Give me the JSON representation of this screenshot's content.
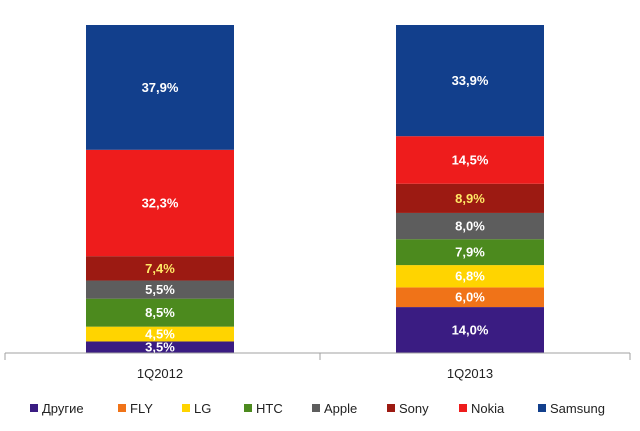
{
  "chart_data": {
    "type": "bar",
    "stacked": true,
    "normalized": true,
    "categories": [
      "1Q2012",
      "1Q2013"
    ],
    "series": [
      {
        "name": "Другие",
        "color": "#3a1c82",
        "label_color": "#ffffff",
        "values": [
          3.5,
          14.0
        ],
        "labels": [
          "3,5%",
          "14,0%"
        ]
      },
      {
        "name": "FLY",
        "color": "#f07318",
        "label_color": "#ffffff",
        "values": [
          0.0,
          6.0
        ],
        "labels": [
          "",
          "6,0%"
        ]
      },
      {
        "name": "LG",
        "color": "#ffd400",
        "label_color": "#ffffff",
        "values": [
          4.5,
          6.8
        ],
        "labels": [
          "4,5%",
          "6,8%"
        ]
      },
      {
        "name": "HTC",
        "color": "#4c8a1e",
        "label_color": "#ffffff",
        "values": [
          8.5,
          7.9
        ],
        "labels": [
          "8,5%",
          "7,9%"
        ]
      },
      {
        "name": "Apple",
        "color": "#5d5d5d",
        "label_color": "#ffffff",
        "values": [
          5.5,
          8.0
        ],
        "labels": [
          "5,5%",
          "8,0%"
        ]
      },
      {
        "name": "Sony",
        "color": "#9c1a12",
        "label_color": "#ffe866",
        "values": [
          7.4,
          8.9
        ],
        "labels": [
          "7,4%",
          "8,9%"
        ]
      },
      {
        "name": "Nokia",
        "color": "#ee1c1c",
        "label_color": "#ffffff",
        "values": [
          32.3,
          14.5
        ],
        "labels": [
          "32,3%",
          "14,5%"
        ]
      },
      {
        "name": "Samsung",
        "color": "#123f8c",
        "label_color": "#ffffff",
        "values": [
          37.9,
          33.9
        ],
        "labels": [
          "37,9%",
          "33,9%"
        ]
      }
    ],
    "title": "",
    "xlabel": "",
    "ylabel": "",
    "legend_position": "bottom",
    "grid": false
  }
}
